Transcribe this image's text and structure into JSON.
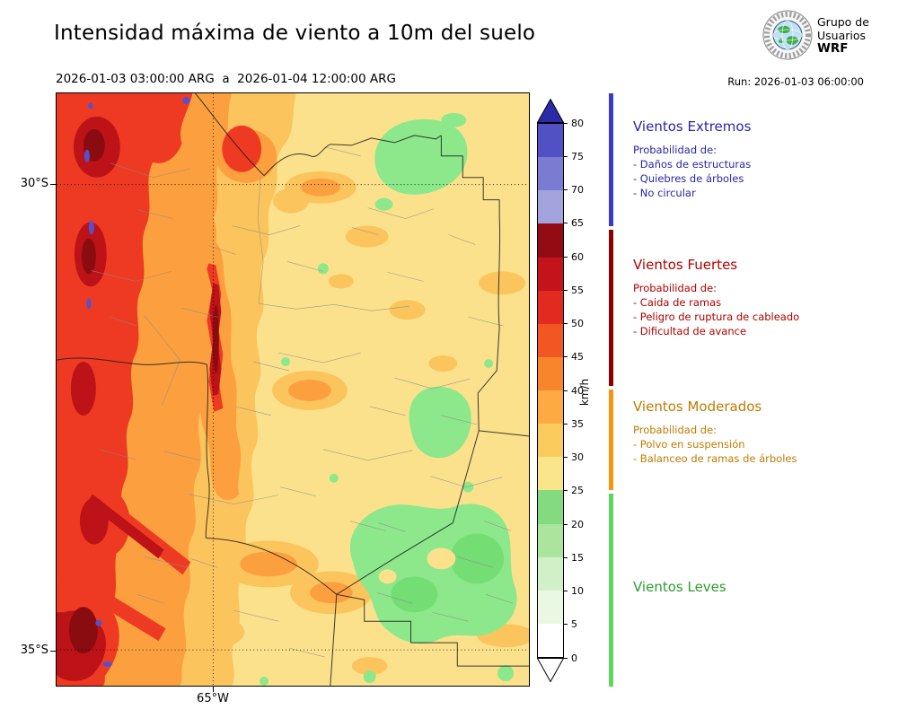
{
  "header": {
    "title": "Intensidad máxima de viento a 10m del suelo",
    "period": "2026-01-03 03:00:00 ARG  a  2026-01-04 12:00:00 ARG",
    "run": "Run: 2026-01-03 06:00:00",
    "logo": {
      "lines": [
        "Grupo de",
        "Usuarios",
        "WRF"
      ]
    }
  },
  "map": {
    "lat_tick_labels": [
      "30°S",
      "35°S"
    ],
    "lon_tick_labels": [
      "65°W"
    ]
  },
  "colorbar": {
    "unit": "km/h",
    "ticks": [
      "0",
      "5",
      "10",
      "15",
      "20",
      "25",
      "30",
      "35",
      "40",
      "45",
      "50",
      "55",
      "60",
      "65",
      "70",
      "75",
      "80"
    ],
    "segment_colors": [
      "#ffffff",
      "#eaf8e3",
      "#d2f0c8",
      "#abe49d",
      "#83da7f",
      "#fbe58a",
      "#fccb5d",
      "#fdaa43",
      "#f8842c",
      "#f25723",
      "#e32a20",
      "#c5131b",
      "#940c13",
      "#a3a3de",
      "#7b7bd1",
      "#5151c4"
    ],
    "extend_over_color": "#2b2baa",
    "extend_under_color": "#ffffff"
  },
  "legend": {
    "sections": [
      {
        "title": "Vientos Extremos",
        "color": "#2626a8",
        "bar_color": "#3a3ac8",
        "intro": "Probabilidad de:",
        "items": [
          "- Daños de estructuras",
          "- Quiebres de árboles",
          "- No circular"
        ]
      },
      {
        "title": "Vientos Fuertes",
        "color": "#b00000",
        "bar_color": "#8b0000",
        "intro": "Probabilidad de:",
        "items": [
          "- Caida de ramas",
          "- Peligro de ruptura de cableado",
          "- Dificultad de avance"
        ]
      },
      {
        "title": "Vientos Moderados",
        "color": "#c07b00",
        "bar_color": "#f59510",
        "intro": "Probabilidad de:",
        "items": [
          "- Polvo en suspensión",
          "- Balanceo de ramas de árboles"
        ]
      },
      {
        "title": "Vientos Leves",
        "color": "#2e9e2e",
        "bar_color": "#5cd65c",
        "intro": "",
        "items": []
      }
    ]
  }
}
